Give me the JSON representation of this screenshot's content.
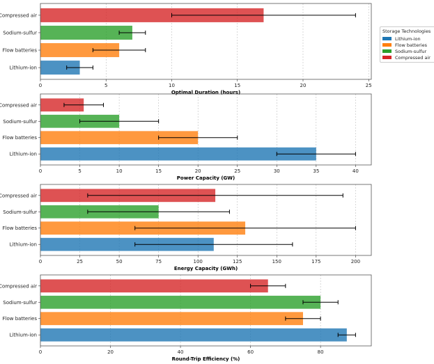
{
  "legend": {
    "title": "Storage Technologies",
    "items": [
      {
        "label": "Lithium-ion",
        "color": "#1f77b4"
      },
      {
        "label": "Flow batteries",
        "color": "#ff7f0e"
      },
      {
        "label": "Sodium-sulfur",
        "color": "#2ca02c"
      },
      {
        "label": "Compressed air",
        "color": "#d62728"
      }
    ]
  },
  "chart_data": [
    {
      "type": "bar",
      "orientation": "horizontal",
      "categories": [
        "Lithium-ion",
        "Flow batteries",
        "Sodium-sulfur",
        "Compressed air"
      ],
      "values": [
        3,
        6,
        7,
        17
      ],
      "error_low": [
        2,
        4,
        6,
        10
      ],
      "error_high": [
        4,
        8,
        8,
        24
      ],
      "colors": [
        "#1f77b4",
        "#ff7f0e",
        "#2ca02c",
        "#d62728"
      ],
      "xlabel": "Optimal Duration (hours)",
      "xlim": [
        0,
        25.2
      ],
      "xticks": [
        0,
        5,
        10,
        15,
        20,
        25
      ],
      "grid": "x"
    },
    {
      "type": "bar",
      "orientation": "horizontal",
      "categories": [
        "Lithium-ion",
        "Flow batteries",
        "Sodium-sulfur",
        "Compressed air"
      ],
      "values": [
        35,
        20,
        10,
        5.5
      ],
      "error_low": [
        30,
        15,
        5,
        3
      ],
      "error_high": [
        40,
        25,
        15,
        8
      ],
      "colors": [
        "#1f77b4",
        "#ff7f0e",
        "#2ca02c",
        "#d62728"
      ],
      "xlabel": "Power Capacity (GW)",
      "xlim": [
        0,
        42
      ],
      "xticks": [
        0,
        5,
        10,
        15,
        20,
        25,
        30,
        35,
        40
      ],
      "grid": "x"
    },
    {
      "type": "bar",
      "orientation": "horizontal",
      "categories": [
        "Lithium-ion",
        "Flow batteries",
        "Sodium-sulfur",
        "Compressed air"
      ],
      "values": [
        110,
        130,
        75,
        111
      ],
      "error_low": [
        60,
        60,
        30,
        30
      ],
      "error_high": [
        160,
        200,
        120,
        192
      ],
      "colors": [
        "#1f77b4",
        "#ff7f0e",
        "#2ca02c",
        "#d62728"
      ],
      "xlabel": "Energy Capacity (GWh)",
      "xlim": [
        0,
        210
      ],
      "xticks": [
        0,
        25,
        50,
        75,
        100,
        125,
        150,
        175,
        200
      ],
      "grid": "x"
    },
    {
      "type": "bar",
      "orientation": "horizontal",
      "categories": [
        "Lithium-ion",
        "Flow batteries",
        "Sodium-sulfur",
        "Compressed air"
      ],
      "values": [
        87.5,
        75,
        80,
        65
      ],
      "error_low": [
        85,
        70,
        75,
        60
      ],
      "error_high": [
        90,
        80,
        85,
        70
      ],
      "colors": [
        "#1f77b4",
        "#ff7f0e",
        "#2ca02c",
        "#d62728"
      ],
      "xlabel": "Round-Trip Efficiency (%)",
      "xlim": [
        0,
        94.5
      ],
      "xticks": [
        0,
        20,
        40,
        60,
        80
      ],
      "grid": "x"
    }
  ]
}
